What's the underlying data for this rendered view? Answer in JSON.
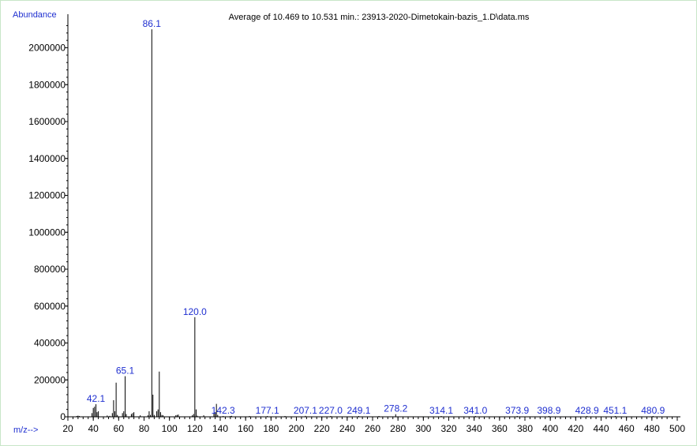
{
  "chart_data": {
    "type": "bar",
    "title": "Average of 10.469 to 10.531 min.: 23913-2020-Dimetokain-bazis_1.D\\data.ms",
    "ylabel": "Abundance",
    "xlabel": "m/z-->",
    "xlim": [
      20,
      500
    ],
    "ylim": [
      0,
      2150000
    ],
    "x_ticks": [
      20,
      40,
      60,
      80,
      100,
      120,
      140,
      160,
      180,
      200,
      220,
      240,
      260,
      280,
      300,
      320,
      340,
      360,
      380,
      400,
      420,
      440,
      460,
      480,
      500
    ],
    "y_ticks": [
      0,
      200000,
      400000,
      600000,
      800000,
      1000000,
      1200000,
      1400000,
      1600000,
      1800000,
      2000000
    ],
    "peaks": [
      {
        "mz": 27,
        "abundance": 4000
      },
      {
        "mz": 28,
        "abundance": 6000
      },
      {
        "mz": 29,
        "abundance": 3000
      },
      {
        "mz": 39,
        "abundance": 20000
      },
      {
        "mz": 40,
        "abundance": 48000
      },
      {
        "mz": 41,
        "abundance": 55000
      },
      {
        "mz": 42.1,
        "abundance": 68000,
        "label": "42.1"
      },
      {
        "mz": 43,
        "abundance": 25000
      },
      {
        "mz": 44,
        "abundance": 30000
      },
      {
        "mz": 51,
        "abundance": 7000
      },
      {
        "mz": 53,
        "abundance": 5000
      },
      {
        "mz": 55,
        "abundance": 20000
      },
      {
        "mz": 56,
        "abundance": 90000
      },
      {
        "mz": 57,
        "abundance": 30000
      },
      {
        "mz": 58,
        "abundance": 185000
      },
      {
        "mz": 59,
        "abundance": 10000
      },
      {
        "mz": 63,
        "abundance": 20000
      },
      {
        "mz": 64,
        "abundance": 30000
      },
      {
        "mz": 65.1,
        "abundance": 220000,
        "label": "65.1"
      },
      {
        "mz": 66,
        "abundance": 15000
      },
      {
        "mz": 70,
        "abundance": 15000
      },
      {
        "mz": 71,
        "abundance": 20000
      },
      {
        "mz": 72,
        "abundance": 25000
      },
      {
        "mz": 77,
        "abundance": 8000
      },
      {
        "mz": 83,
        "abundance": 8000
      },
      {
        "mz": 84,
        "abundance": 30000
      },
      {
        "mz": 85,
        "abundance": 10000
      },
      {
        "mz": 86.1,
        "abundance": 2100000,
        "label": "86.1"
      },
      {
        "mz": 87,
        "abundance": 120000
      },
      {
        "mz": 88,
        "abundance": 10000
      },
      {
        "mz": 90,
        "abundance": 30000
      },
      {
        "mz": 91,
        "abundance": 40000
      },
      {
        "mz": 92,
        "abundance": 245000
      },
      {
        "mz": 93,
        "abundance": 25000
      },
      {
        "mz": 94,
        "abundance": 10000
      },
      {
        "mz": 95,
        "abundance": 8000
      },
      {
        "mz": 105,
        "abundance": 8000
      },
      {
        "mz": 106,
        "abundance": 10000
      },
      {
        "mz": 107,
        "abundance": 12000
      },
      {
        "mz": 118,
        "abundance": 8000
      },
      {
        "mz": 119,
        "abundance": 15000
      },
      {
        "mz": 120.0,
        "abundance": 540000,
        "label": "120.0"
      },
      {
        "mz": 121,
        "abundance": 40000
      },
      {
        "mz": 122,
        "abundance": 6000
      },
      {
        "mz": 127,
        "abundance": 8000
      },
      {
        "mz": 135,
        "abundance": 20000
      },
      {
        "mz": 136,
        "abundance": 25000
      },
      {
        "mz": 137,
        "abundance": 70000
      },
      {
        "mz": 138,
        "abundance": 10000
      },
      {
        "mz": 142.3,
        "abundance": 4000,
        "label": "142.3"
      },
      {
        "mz": 148,
        "abundance": 4000
      },
      {
        "mz": 149,
        "abundance": 5000
      },
      {
        "mz": 163,
        "abundance": 3000
      },
      {
        "mz": 177.1,
        "abundance": 3000,
        "label": "177.1"
      },
      {
        "mz": 191,
        "abundance": 2000
      },
      {
        "mz": 207.1,
        "abundance": 5000,
        "label": "207.1"
      },
      {
        "mz": 227.0,
        "abundance": 2000,
        "label": "227.0"
      },
      {
        "mz": 249.1,
        "abundance": 2000,
        "label": "249.1"
      },
      {
        "mz": 265,
        "abundance": 2000
      },
      {
        "mz": 278.2,
        "abundance": 14000,
        "label": "278.2"
      },
      {
        "mz": 314.1,
        "abundance": 2000,
        "label": "314.1"
      },
      {
        "mz": 341.0,
        "abundance": 2000,
        "label": "341.0"
      },
      {
        "mz": 373.9,
        "abundance": 2000,
        "label": "373.9"
      },
      {
        "mz": 398.9,
        "abundance": 2000,
        "label": "398.9"
      },
      {
        "mz": 428.9,
        "abundance": 2000,
        "label": "428.9"
      },
      {
        "mz": 451.1,
        "abundance": 2000,
        "label": "451.1"
      },
      {
        "mz": 480.9,
        "abundance": 2000,
        "label": "480.9"
      }
    ],
    "colors": {
      "bar": "#000000",
      "axis": "#000000",
      "peak_label": "#1f2fd0",
      "axis_title": "#1f2fd0",
      "frame": "#c8e6c8"
    },
    "grid": false,
    "legend": "none"
  }
}
